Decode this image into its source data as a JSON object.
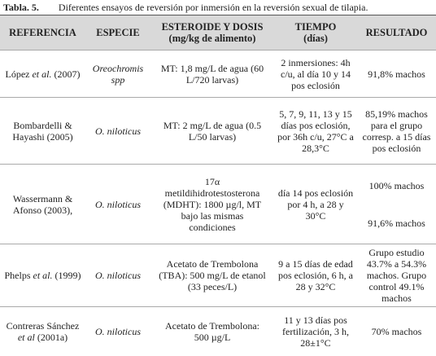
{
  "caption": {
    "label": "Tabla. 5.",
    "text": "Diferentes ensayos de reversión por inmersión en la reversión sexual de tilapia."
  },
  "table": {
    "header": [
      "REFERENCIA",
      "ESPECIE",
      [
        "ESTEROIDE Y DOSIS",
        "(mg/kg de alimento)"
      ],
      [
        "TIEMPO",
        "(días)"
      ],
      "RESULTADO"
    ],
    "rows": [
      [
        [
          "López ",
          "et al.",
          " (2007)"
        ],
        "Oreochromis spp",
        "MT: 1,8 mg/L de agua (60 L/720 larvas)",
        "2 inmersiones: 4h c/u, al día 10 y 14 pos eclosión",
        "91,8% machos"
      ],
      [
        [
          "Bombardelli & Hayashi (2005)"
        ],
        "O. niloticus",
        "MT: 2 mg/L de agua (0.5 L/50 larvas)",
        "5, 7, 9, 11, 13 y 15 días pos eclosión, por 36h c/u, 27°C a 28,3°C",
        "85,19% machos para el grupo corresp. a 15 días pos eclosión"
      ],
      [
        [
          "Wassermann & Afonso (2003),"
        ],
        "O. niloticus",
        "17α metildihidrotestosterona (MDHT): 1800 µg/l, MT bajo las mismas condiciones",
        "día 14 pos eclosión por 4 h, a 28 y 30°C",
        [
          "100% machos",
          "91,6% machos"
        ]
      ],
      [
        [
          "Phelps ",
          "et al.",
          " (1999)"
        ],
        "O. niloticus",
        "Acetato de Trembolona (TBA): 500 mg/L de etanol (33 peces/L)",
        "9 a 15 días de edad pos eclosión, 6 h, a 28 y 32°C",
        "Grupo estudio 43.7% a 54.3% machos. Grupo control 49.1% machos"
      ],
      [
        [
          "Contreras Sánchez ",
          "et al",
          " (2001a)"
        ],
        "O. niloticus",
        "Acetato de Trembolona: 500 µg/L",
        "11 y 13 días pos fertilización, 3 h, 28±1°C",
        "70% machos"
      ]
    ]
  }
}
